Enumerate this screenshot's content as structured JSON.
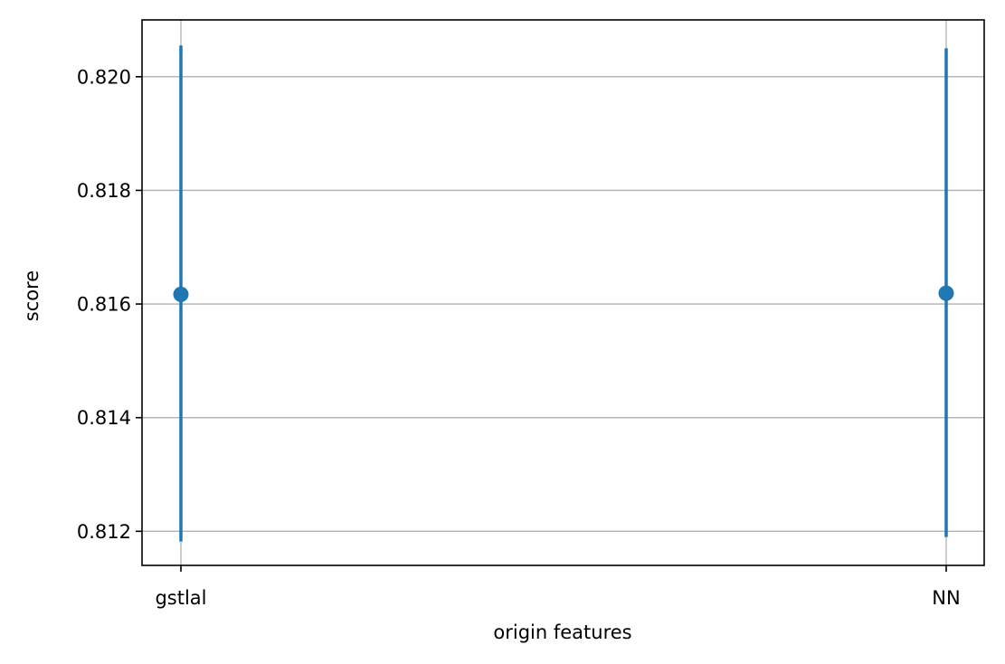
{
  "chart_data": {
    "type": "scatter",
    "title": "",
    "xlabel": "origin features",
    "ylabel": "score",
    "categories": [
      "gstlal",
      "NN"
    ],
    "series": [
      {
        "values": [
          0.81617,
          0.81619
        ],
        "err_low": [
          0.81182,
          0.8119
        ],
        "err_high": [
          0.82055,
          0.8205
        ]
      }
    ],
    "yticks": [
      "0.812",
      "0.814",
      "0.816",
      "0.818",
      "0.820"
    ],
    "ytick_values": [
      0.812,
      0.814,
      0.816,
      0.818,
      0.82
    ],
    "ylim": [
      0.8114,
      0.821
    ],
    "grid": true,
    "legend": "none",
    "colors": {
      "series": "#1f77b4",
      "grid": "#b0b0b0",
      "axes": "#000000"
    }
  }
}
